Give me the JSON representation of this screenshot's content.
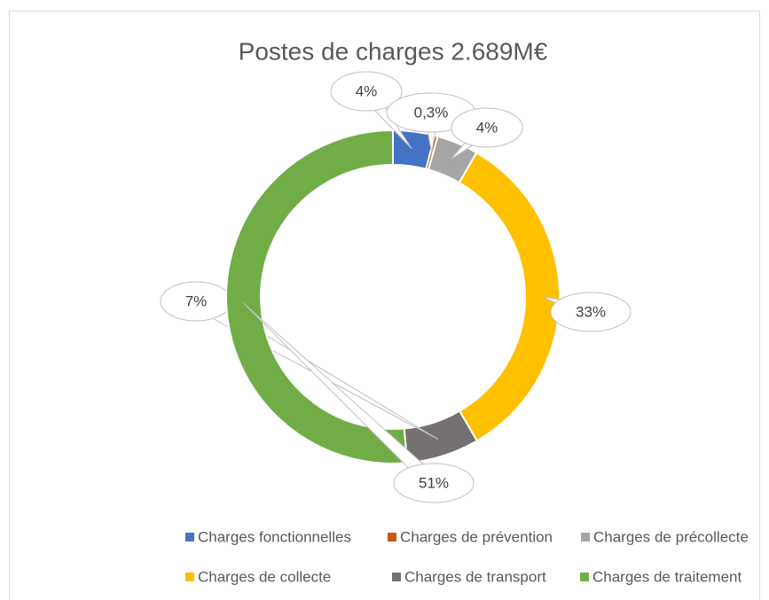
{
  "chart_data": {
    "type": "pie",
    "donut": true,
    "title": "Postes de charges 2.689M€",
    "categories": [
      "Charges fonctionnelles",
      "Charges de prévention",
      "Charges de précollecte",
      "Charges de collecte",
      "Charges de transport",
      "Charges de traitement"
    ],
    "values": [
      4,
      0.3,
      4,
      33,
      7,
      51
    ],
    "value_labels": [
      "4%",
      "0,3%",
      "4%",
      "33%",
      "7%",
      "51%"
    ],
    "colors": [
      "#4472c4",
      "#c55a11",
      "#a5a5a5",
      "#ffc000",
      "#767171",
      "#70ad47"
    ],
    "legend": "bottom"
  }
}
